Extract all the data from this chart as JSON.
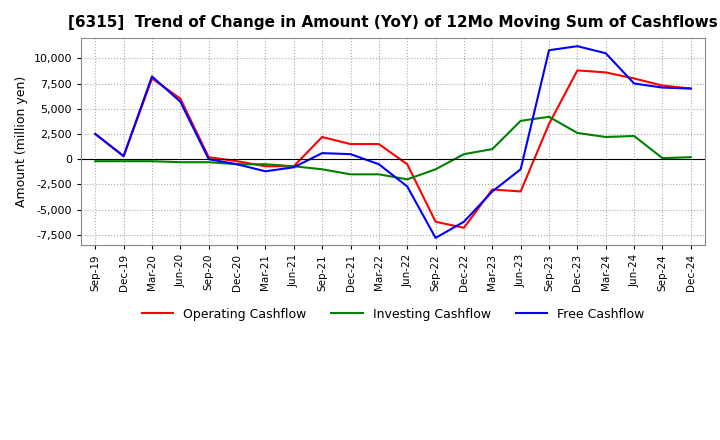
{
  "title": "[6315]  Trend of Change in Amount (YoY) of 12Mo Moving Sum of Cashflows",
  "ylabel": "Amount (million yen)",
  "x_labels": [
    "Sep-19",
    "Dec-19",
    "Mar-20",
    "Jun-20",
    "Sep-20",
    "Dec-20",
    "Mar-21",
    "Jun-21",
    "Sep-21",
    "Dec-21",
    "Mar-22",
    "Jun-22",
    "Sep-22",
    "Dec-22",
    "Mar-23",
    "Jun-23",
    "Sep-23",
    "Dec-23",
    "Mar-24",
    "Jun-24",
    "Sep-24",
    "Dec-24"
  ],
  "operating": [
    2500,
    300,
    8000,
    6000,
    200,
    -200,
    -700,
    -700,
    2200,
    1500,
    1500,
    -500,
    -6200,
    -6800,
    -3000,
    -3200,
    3500,
    8800,
    8600,
    8000,
    7300,
    7000
  ],
  "investing": [
    -200,
    -200,
    -200,
    -300,
    -300,
    -500,
    -500,
    -700,
    -1000,
    -1500,
    -1500,
    -2000,
    -1000,
    500,
    1000,
    3800,
    4200,
    2600,
    2200,
    2300,
    100,
    200
  ],
  "free": [
    2500,
    300,
    8200,
    5700,
    0,
    -500,
    -1200,
    -800,
    600,
    500,
    -500,
    -2700,
    -7800,
    -6200,
    -3200,
    -1000,
    10800,
    11200,
    10500,
    7500,
    7100,
    7000
  ],
  "operating_color": "#ff0000",
  "investing_color": "#008000",
  "free_color": "#0000ff",
  "ylim": [
    -8500,
    12000
  ],
  "yticks": [
    -7500,
    -5000,
    -2500,
    0,
    2500,
    5000,
    7500,
    10000
  ],
  "legend_labels": [
    "Operating Cashflow",
    "Investing Cashflow",
    "Free Cashflow"
  ],
  "grid_color": "#aaaaaa",
  "grid_style": "dotted"
}
